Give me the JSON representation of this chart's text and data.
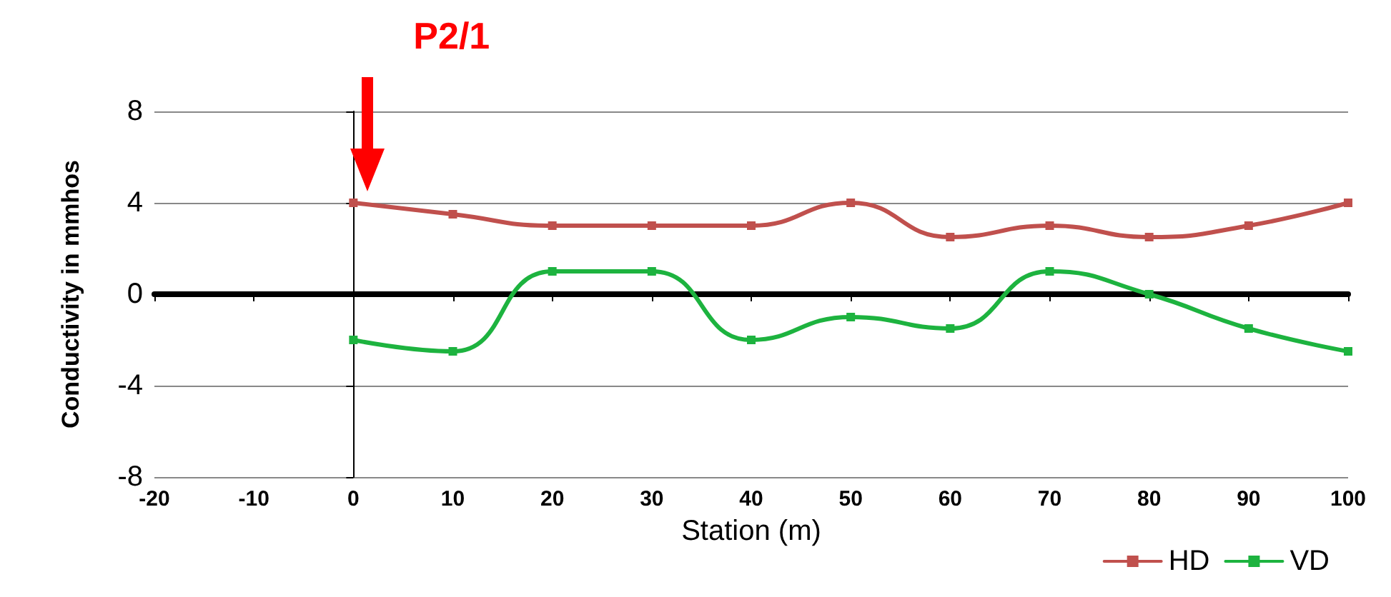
{
  "chart_data": {
    "type": "line",
    "xlabel": "Station (m)",
    "ylabel": "Conductivity in mmhos",
    "x": [
      0,
      10,
      20,
      30,
      40,
      50,
      60,
      70,
      80,
      90,
      100
    ],
    "series": [
      {
        "name": "HD",
        "color": "#c0504d",
        "values": [
          4,
          3.5,
          3,
          3,
          3,
          4,
          2.5,
          3,
          2.5,
          3,
          4
        ]
      },
      {
        "name": "VD",
        "color": "#1db33f",
        "values": [
          -2,
          -2.5,
          1,
          1,
          -2,
          -1,
          -1.5,
          1,
          0,
          -1.5,
          -2.5
        ]
      }
    ],
    "xlim": [
      -20,
      100
    ],
    "xticks": [
      -20,
      -10,
      0,
      10,
      20,
      30,
      40,
      50,
      60,
      70,
      80,
      90,
      100
    ],
    "ylim": [
      -8,
      8
    ],
    "yticks": [
      -8,
      -4,
      0,
      4,
      8
    ],
    "grid": "y",
    "legend": "bottom right",
    "marker": "square",
    "line_style": "solid",
    "annotations": [
      "P2/1"
    ]
  }
}
